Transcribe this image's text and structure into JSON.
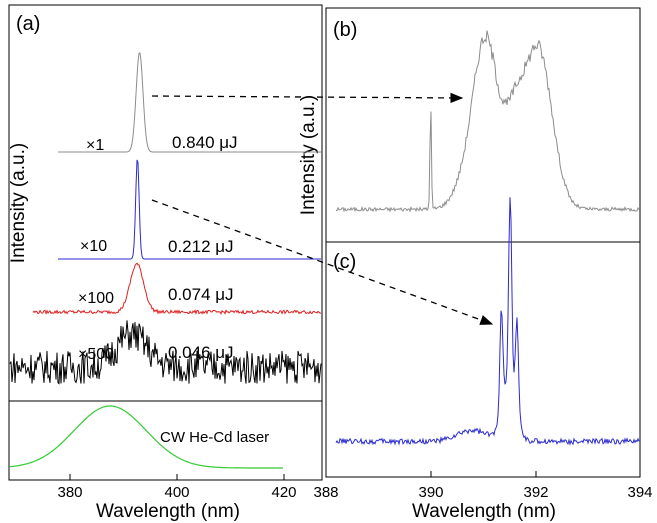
{
  "panels": {
    "a": {
      "label": "(a)"
    },
    "b": {
      "label": "(b)"
    },
    "c": {
      "label": "(c)"
    }
  },
  "left_traces": [
    {
      "multiplier": "×1",
      "energy": "0.840 μJ",
      "color": "#8c8c8c",
      "noise": 0.0,
      "width": 0.9,
      "center": 393.0,
      "baseline_offset": 0
    },
    {
      "multiplier": "×10",
      "energy": "0.212 μJ",
      "color": "#2a2ad0",
      "noise": 0.0,
      "width": 0.45,
      "center": 392.6,
      "baseline_offset": 0
    },
    {
      "multiplier": "×100",
      "energy": "0.074 μJ",
      "color": "#e02020",
      "noise": 0.07,
      "width": 1.8,
      "center": 392.5,
      "baseline_offset": 0
    },
    {
      "multiplier": "×500",
      "energy": "0.046 μJ",
      "color": "#000000",
      "noise": 0.35,
      "width": 4.0,
      "center": 391.5,
      "baseline_offset": 0
    }
  ],
  "cw_trace": {
    "label": "CW He-Cd laser",
    "color": "#33cc33",
    "center": 387.5,
    "width": 9.5
  },
  "chart_data": [
    {
      "type": "line",
      "panel": "(a)",
      "xlabel": "Wavelength (nm)",
      "ylabel": "Intensity (a.u.)",
      "xlim": [
        365,
        432
      ],
      "xticks": [
        380,
        400,
        420
      ],
      "series": [
        {
          "name": "×1 0.840 μJ",
          "peak_x": 393.0
        },
        {
          "name": "×10 0.212 μJ",
          "peak_x": 392.6
        },
        {
          "name": "×100 0.074 μJ",
          "peak_x": 392.5
        },
        {
          "name": "×500 0.046 μJ",
          "peak_x": 391.5
        },
        {
          "name": "CW He-Cd laser",
          "peak_x": 387.5
        }
      ]
    },
    {
      "type": "line",
      "panel": "(b)",
      "ylabel": "Intensity (a.u.)",
      "xlim": [
        388,
        394
      ],
      "peaks_x": [
        390.0,
        391.1,
        392.1
      ],
      "color": "#8c8c8c"
    },
    {
      "type": "line",
      "panel": "(c)",
      "xlabel": "Wavelength (nm)",
      "xlim": [
        388,
        394
      ],
      "xticks": [
        388,
        390,
        392,
        394
      ],
      "peaks_x": [
        391.3,
        391.5,
        391.65
      ],
      "color": "#2a2ad0"
    }
  ],
  "axes": {
    "left_xlabel": "Wavelength (nm)",
    "right_xlabel": "Wavelength (nm)",
    "left_ylabel": "Intensity (a.u.)",
    "right_ylabel": "Intensity (a.u.)",
    "left_ticks": [
      "380",
      "400",
      "420"
    ],
    "right_ticks": [
      "388",
      "390",
      "392",
      "394"
    ]
  }
}
